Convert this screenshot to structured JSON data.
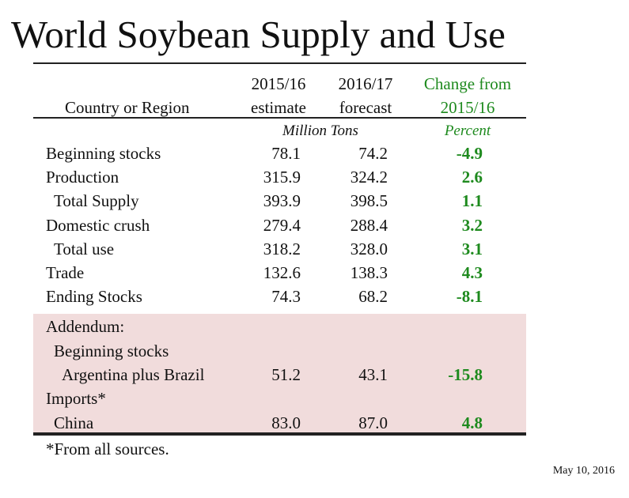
{
  "title": "World Soybean Supply and Use",
  "header": {
    "region": "Country or Region",
    "col1": [
      "2015/16",
      "estimate"
    ],
    "col2": [
      "2016/17",
      "forecast"
    ],
    "col3": [
      "Change from",
      "2015/16"
    ],
    "units": "Million Tons",
    "percent": "Percent"
  },
  "rows": [
    {
      "label": "Beginning stocks",
      "v1": "78.1",
      "v2": "74.2",
      "chg": "-4.9"
    },
    {
      "label": "Production",
      "v1": "315.9",
      "v2": "324.2",
      "chg": "2.6"
    },
    {
      "label": "Total Supply",
      "v1": "393.9",
      "v2": "398.5",
      "chg": "1.1"
    },
    {
      "label": "Domestic crush",
      "v1": "279.4",
      "v2": "288.4",
      "chg": "3.2"
    },
    {
      "label": "Total use",
      "v1": "318.2",
      "v2": "328.0",
      "chg": "3.1"
    },
    {
      "label": "Trade",
      "v1": "132.6",
      "v2": "138.3",
      "chg": "4.3"
    },
    {
      "label": "Ending Stocks",
      "v1": "74.3",
      "v2": "68.2",
      "chg": "-8.1"
    }
  ],
  "addendum": {
    "heading": "Addendum:",
    "sub1": "Beginning stocks",
    "row1": {
      "label": "Argentina plus Brazil",
      "v1": "51.2",
      "v2": "43.1",
      "chg": "-15.8"
    },
    "sub2": "Imports*",
    "row2": {
      "label": "China",
      "v1": "83.0",
      "v2": "87.0",
      "chg": "4.8"
    }
  },
  "footnote": "*From all sources.",
  "date": "May 10, 2016",
  "colors": {
    "green": "#1e8a1e",
    "addendum_bg": "#f1dcdc"
  }
}
